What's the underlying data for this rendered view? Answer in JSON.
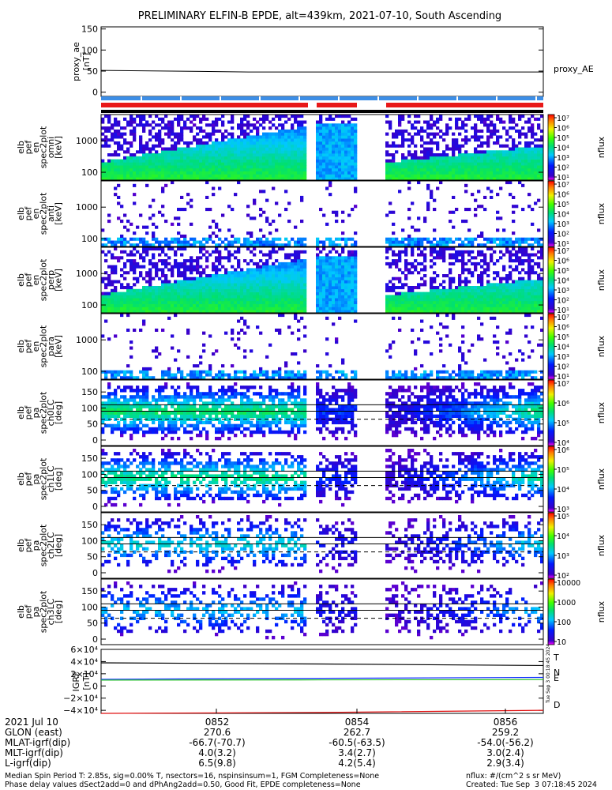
{
  "title": "PRELIMINARY ELFIN-B EPDE, alt=439km, 2021-07-10, South Ascending",
  "colors": {
    "t": "#000000",
    "n": "#1030ff",
    "e": "#20c020",
    "d": "#e01010",
    "bar_blue": "#3d8ee6",
    "bar_red": "#e81818"
  },
  "chart_data": [
    {
      "type": "line",
      "name": "proxy_ae",
      "ylabel": [
        "proxy_ae",
        "[nT]"
      ],
      "yticks": [
        "150",
        "100",
        "50",
        "0"
      ],
      "ylim": [
        -10,
        155
      ],
      "series": [
        {
          "name": "proxy_AE",
          "y": [
            48,
            48,
            48,
            48
          ]
        }
      ]
    },
    {
      "type": "heatmap",
      "ylabel": [
        "elb",
        "pef",
        "en",
        "spec2plot",
        "omni",
        "[keV]"
      ],
      "yticks": [
        "1000",
        "100"
      ],
      "yscale": "log",
      "colorbar": {
        "ticks": [
          "10⁷",
          "10⁶",
          "10⁵",
          "10⁴",
          "10³",
          "10²",
          "10¹"
        ],
        "label": "nflux"
      }
    },
    {
      "type": "heatmap",
      "ylabel": [
        "elb",
        "pef",
        "en",
        "spec2plot",
        "anti",
        "[keV]"
      ],
      "yticks": [
        "1000",
        "100"
      ],
      "yscale": "log",
      "colorbar": {
        "ticks": [
          "10⁷",
          "10⁶",
          "10⁵",
          "10⁴",
          "10³",
          "10²",
          "10¹"
        ],
        "label": "nflux"
      }
    },
    {
      "type": "heatmap",
      "ylabel": [
        "elb",
        "pef",
        "en",
        "spec2plot",
        "perp",
        "[keV]"
      ],
      "yticks": [
        "1000",
        "100"
      ],
      "yscale": "log",
      "colorbar": {
        "ticks": [
          "10⁷",
          "10⁶",
          "10⁵",
          "10⁴",
          "10³",
          "10²",
          "10¹"
        ],
        "label": "nflux"
      }
    },
    {
      "type": "heatmap",
      "ylabel": [
        "elb",
        "pef",
        "en",
        "spec2plot",
        "para",
        "[keV]"
      ],
      "yticks": [
        "1000",
        "100"
      ],
      "yscale": "log",
      "colorbar": {
        "ticks": [
          "10⁷",
          "10⁶",
          "10⁵",
          "10⁴",
          "10³",
          "10²",
          "10¹"
        ],
        "label": "nflux"
      }
    },
    {
      "type": "heatmap",
      "ylabel": [
        "elb",
        "pef",
        "pa",
        "spec2plot",
        "ch0LC",
        "[deg]"
      ],
      "yticks": [
        "150",
        "100",
        "50",
        "0"
      ],
      "colorbar": {
        "ticks": [
          "10⁷",
          "10⁶",
          "10⁵",
          "10⁴"
        ],
        "label": "nflux"
      }
    },
    {
      "type": "heatmap",
      "ylabel": [
        "elb",
        "pef",
        "pa",
        "spec2plot",
        "ch1LC",
        "[deg]"
      ],
      "yticks": [
        "150",
        "100",
        "50",
        "0"
      ],
      "colorbar": {
        "ticks": [
          "10⁶",
          "10⁵",
          "10⁴",
          "10³"
        ],
        "label": "nflux"
      }
    },
    {
      "type": "heatmap",
      "ylabel": [
        "elb",
        "pef",
        "pa",
        "spec2plot",
        "ch2LC",
        "[deg]"
      ],
      "yticks": [
        "150",
        "100",
        "50",
        "0"
      ],
      "colorbar": {
        "ticks": [
          "10⁵",
          "10⁴",
          "10³",
          "10²"
        ],
        "label": "nflux"
      }
    },
    {
      "type": "heatmap",
      "ylabel": [
        "elb",
        "pef",
        "pa",
        "spec2plot",
        "ch3LC",
        "[deg]"
      ],
      "yticks": [
        "150",
        "100",
        "50",
        "0"
      ],
      "colorbar": {
        "ticks": [
          "10000",
          "1000",
          "100",
          "10"
        ],
        "label": "nflux"
      }
    },
    {
      "type": "line",
      "name": "bt89",
      "ylabel": [
        "IGRF",
        "[nT]"
      ],
      "yticks": [
        "6×10⁴",
        "4×10⁴",
        "2×10⁴",
        "0",
        "−2×10⁴",
        "−4×10⁴"
      ],
      "ylim": [
        -45000,
        60000
      ],
      "series": [
        {
          "name": "T",
          "y": [
            38000,
            36000,
            33500
          ]
        },
        {
          "name": "N",
          "y": [
            11000,
            12500,
            14000
          ]
        },
        {
          "name": "E",
          "y": [
            9500,
            10000,
            10500
          ]
        },
        {
          "name": "D",
          "y": [
            -45000,
            -43500,
            -40000
          ]
        }
      ]
    }
  ],
  "footer": {
    "rows": [
      {
        "label": "2021 Jul 10",
        "v": [
          "0852",
          "0854",
          "0856"
        ]
      },
      {
        "label": "GLON (east)",
        "v": [
          "270.6",
          "262.7",
          "259.2"
        ]
      },
      {
        "label": "MLAT-igrf(dip)",
        "v": [
          "-66.7(-70.7)",
          "-60.5(-63.5)",
          "-54.0(-56.2)"
        ]
      },
      {
        "label": "MLT-igrf(dip)",
        "v": [
          "4.0(3.2)",
          "3.4(2.7)",
          "3.0(2.4)"
        ]
      },
      {
        "label": "L-igrf(dip)",
        "v": [
          "6.5(9.8)",
          "4.2(5.4)",
          "2.9(3.4)"
        ]
      }
    ],
    "note1": "Median Spin Period T: 2.85s, sig=0.00% T, nsectors=16, nspinsinsum=1, FGM Completeness=None",
    "note2": "Phase delay values dSect2add=0 and dPhAng2add=0.50, Good Fit, EPDE completeness=None",
    "nflux_units": "nflux: #/(cm^2 s sr MeV)",
    "created": "Created: Tue Sep  3 07:18:45 2024",
    "stamp": "Tue Sep  3 00:18:45 2024"
  }
}
